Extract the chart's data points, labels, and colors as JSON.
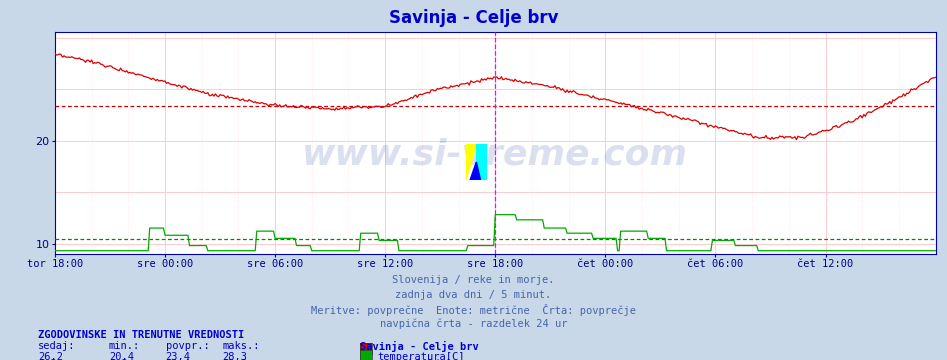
{
  "title": "Savinja - Celje brv",
  "title_color": "#0000cc",
  "bg_color": "#c8d8e8",
  "plot_bg_color": "#ffffff",
  "temp_color": "#dd0000",
  "flow_color": "#00aa00",
  "avg_temp": 23.4,
  "avg_flow": 10.4,
  "temp_min": 20.4,
  "temp_max": 28.3,
  "temp_current": 26.2,
  "flow_min": 9.3,
  "flow_max": 12.8,
  "flow_current": 9.3,
  "flow_avg": 10.4,
  "subtitle1": "Slovenija / reke in morje.",
  "subtitle2": "zadnja dva dni / 5 minut.",
  "subtitle3": "Meritve: povprečne  Enote: metrične  Črta: povprečje",
  "subtitle4": "navpična črta - razdelek 24 ur",
  "xtick_labels": [
    "tor 18:00",
    "sre 00:00",
    "sre 06:00",
    "sre 12:00",
    "sre 18:00",
    "čet 00:00",
    "čet 06:00",
    "čet 12:00"
  ],
  "xtick_positions": [
    0,
    72,
    144,
    216,
    288,
    360,
    432,
    504
  ],
  "ylim_min": 9.0,
  "ylim_max": 30.5,
  "yticks": [
    10,
    20
  ],
  "vertical_line_x": 288,
  "total_points": 576,
  "xlabel_color": "#000088",
  "grid_major_color": "#ffcccc",
  "grid_minor_color": "#ffeeee",
  "avg_line_temp_color": "#cc0000",
  "avg_line_flow_color": "#008800",
  "spine_color": "#0000aa",
  "text_subtitle_color": "#4466aa",
  "text_legend_color": "#0000cc",
  "watermark_color": "#3355aa",
  "watermark_alpha": 0.18,
  "logo_yellow": "#ffff00",
  "logo_cyan": "#00ffff",
  "logo_blue": "#0000ff"
}
